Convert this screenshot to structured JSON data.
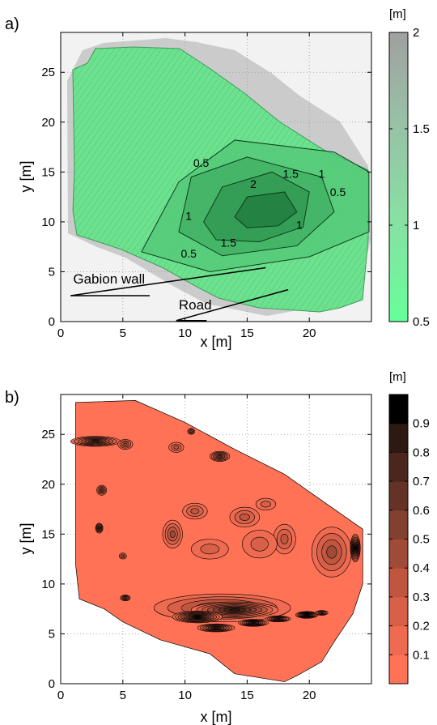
{
  "chart_data": [
    {
      "panel": "a)",
      "type": "heatmap",
      "xlabel": "x [m]",
      "ylabel": "y [m]",
      "xlim": [
        0,
        25
      ],
      "ylim": [
        0,
        29
      ],
      "xticks": [
        0,
        5,
        10,
        15,
        20
      ],
      "yticks": [
        0,
        5,
        10,
        15,
        20,
        25
      ],
      "grid": true,
      "colorbar": {
        "unit": "[m]",
        "range": [
          0.5,
          2
        ],
        "ticks": [
          "0.5",
          "1",
          "1.5",
          "2"
        ],
        "colors": [
          "#66ff99",
          "#a0a0a0"
        ]
      },
      "outline": [
        [
          1,
          29
        ],
        [
          19,
          28.5
        ],
        [
          24.8,
          15.2
        ],
        [
          24.8,
          8.5
        ],
        [
          1.5,
          8.5
        ],
        [
          1,
          12
        ],
        [
          1,
          29
        ]
      ],
      "contours": [
        {
          "level": 0.5,
          "points": [
            [
              6.5,
              7
            ],
            [
              9.5,
              14
            ],
            [
              14,
              18.2
            ],
            [
              22,
              17
            ],
            [
              24.8,
              15
            ],
            [
              24.8,
              9
            ],
            [
              20,
              6.5
            ],
            [
              12,
              5
            ],
            [
              6.5,
              7
            ]
          ]
        },
        {
          "level": 1,
          "points": [
            [
              9.5,
              9
            ],
            [
              10.5,
              14.5
            ],
            [
              15,
              16.5
            ],
            [
              21,
              14.5
            ],
            [
              22,
              11
            ],
            [
              19,
              7.6
            ],
            [
              13,
              6.6
            ],
            [
              9.5,
              9
            ]
          ]
        },
        {
          "level": 1.5,
          "points": [
            [
              11.5,
              10
            ],
            [
              13,
              13.5
            ],
            [
              17,
              15
            ],
            [
              20,
              13
            ],
            [
              19.5,
              9.5
            ],
            [
              16,
              8
            ],
            [
              12.5,
              8.2
            ],
            [
              11.5,
              10
            ]
          ]
        },
        {
          "level": 2,
          "points": [
            [
              14,
              10.5
            ],
            [
              15,
              12.5
            ],
            [
              18,
              13
            ],
            [
              19,
              11
            ],
            [
              17.5,
              9.6
            ],
            [
              15,
              9.4
            ],
            [
              14,
              10.5
            ]
          ]
        }
      ],
      "contour_labels": [
        {
          "text": "0.5",
          "x": 11.3,
          "y": 15.5
        },
        {
          "text": "1.5",
          "x": 18.5,
          "y": 14.4
        },
        {
          "text": "1",
          "x": 21,
          "y": 14.4
        },
        {
          "text": "2",
          "x": 15.5,
          "y": 13.4
        },
        {
          "text": "0.5",
          "x": 22.3,
          "y": 12.6
        },
        {
          "text": "1",
          "x": 10.3,
          "y": 10.2
        },
        {
          "text": "1",
          "x": 19.2,
          "y": 9.3
        },
        {
          "text": "1.5",
          "x": 13.5,
          "y": 7.5
        },
        {
          "text": "0.5",
          "x": 10.3,
          "y": 6.4
        }
      ],
      "annotations": [
        {
          "text": "Gabion wall",
          "x": 1,
          "y": 3.8,
          "line": [
            [
              0.8,
              2.6
            ],
            [
              16.5,
              5.4
            ]
          ]
        },
        {
          "text": "Road",
          "x": 9.5,
          "y": 1.2,
          "line": [
            [
              9.3,
              0.1
            ],
            [
              18.3,
              3.2
            ]
          ]
        }
      ]
    },
    {
      "panel": "b)",
      "type": "heatmap",
      "xlabel": "x [m]",
      "ylabel": "y [m]",
      "xlim": [
        0,
        25
      ],
      "ylim": [
        0,
        29
      ],
      "xticks": [
        0,
        5,
        10,
        15,
        20
      ],
      "yticks": [
        0,
        5,
        10,
        15,
        20,
        25
      ],
      "grid": true,
      "colorbar": {
        "unit": "[m]",
        "range": [
          0,
          1
        ],
        "ticks": [
          "0.1",
          "0.2",
          "0.3",
          "0.4",
          "0.5",
          "0.6",
          "0.7",
          "0.8",
          "0.9"
        ],
        "colors": [
          "#ff7256",
          "#ee6a50",
          "#d86048",
          "#c05540",
          "#a04a38",
          "#82402f",
          "#643226",
          "#4a261c",
          "#2e1812",
          "#000000"
        ]
      },
      "outline": [
        [
          1.2,
          28.2
        ],
        [
          6,
          28.4
        ],
        [
          10,
          26.2
        ],
        [
          14,
          23.5
        ],
        [
          18,
          21
        ],
        [
          22,
          17.5
        ],
        [
          24.3,
          15.5
        ],
        [
          24.3,
          10
        ],
        [
          23.5,
          7
        ],
        [
          22,
          4.2
        ],
        [
          21,
          2.2
        ],
        [
          19,
          0.8
        ],
        [
          18,
          0.2
        ],
        [
          14,
          1
        ],
        [
          12,
          3
        ],
        [
          8,
          4.4
        ],
        [
          5,
          6.2
        ],
        [
          3.5,
          7.5
        ],
        [
          1.5,
          8.5
        ],
        [
          1.2,
          12
        ],
        [
          1.2,
          28.2
        ]
      ],
      "features": [
        {
          "x": 2.8,
          "y": 24.3,
          "rx": 2.0,
          "ry": 0.5,
          "level": 0.7
        },
        {
          "x": 5.2,
          "y": 24.0,
          "rx": 0.6,
          "ry": 0.5,
          "level": 0.4
        },
        {
          "x": 9.3,
          "y": 23.7,
          "rx": 0.6,
          "ry": 0.5,
          "level": 0.3
        },
        {
          "x": 12.8,
          "y": 22.8,
          "rx": 0.8,
          "ry": 0.5,
          "level": 0.6
        },
        {
          "x": 10.5,
          "y": 25.3,
          "rx": 0.3,
          "ry": 0.3,
          "level": 0.4
        },
        {
          "x": 3.3,
          "y": 19.4,
          "rx": 0.4,
          "ry": 0.5,
          "level": 0.5
        },
        {
          "x": 3.1,
          "y": 15.6,
          "rx": 0.3,
          "ry": 0.5,
          "level": 0.6
        },
        {
          "x": 9.0,
          "y": 15.0,
          "rx": 0.8,
          "ry": 1.4,
          "level": 0.4
        },
        {
          "x": 10.8,
          "y": 17.3,
          "rx": 1.0,
          "ry": 0.8,
          "level": 0.3
        },
        {
          "x": 14.8,
          "y": 16.7,
          "rx": 1.2,
          "ry": 1.0,
          "level": 0.3
        },
        {
          "x": 16.5,
          "y": 18.0,
          "rx": 0.8,
          "ry": 0.6,
          "level": 0.2
        },
        {
          "x": 18.0,
          "y": 14.5,
          "rx": 0.9,
          "ry": 1.5,
          "level": 0.3
        },
        {
          "x": 21.8,
          "y": 13.2,
          "rx": 1.6,
          "ry": 2.5,
          "level": 0.4
        },
        {
          "x": 23.7,
          "y": 13.6,
          "rx": 0.4,
          "ry": 1.4,
          "level": 0.9
        },
        {
          "x": 16.0,
          "y": 14.0,
          "rx": 1.4,
          "ry": 1.4,
          "level": 0.2
        },
        {
          "x": 12.0,
          "y": 13.5,
          "rx": 1.5,
          "ry": 1.0,
          "level": 0.2
        },
        {
          "x": 5.0,
          "y": 12.8,
          "rx": 0.3,
          "ry": 0.3,
          "level": 0.3
        },
        {
          "x": 5.2,
          "y": 8.6,
          "rx": 0.4,
          "ry": 0.3,
          "level": 0.5
        },
        {
          "x": 13.0,
          "y": 7.6,
          "rx": 5.5,
          "ry": 1.4,
          "level": 0.5
        },
        {
          "x": 14.0,
          "y": 7.4,
          "rx": 3.5,
          "ry": 0.8,
          "level": 0.8
        },
        {
          "x": 11.0,
          "y": 6.7,
          "rx": 2.0,
          "ry": 0.6,
          "level": 0.9
        },
        {
          "x": 12.5,
          "y": 5.6,
          "rx": 1.5,
          "ry": 0.4,
          "level": 0.7
        },
        {
          "x": 15.5,
          "y": 6.1,
          "rx": 1.2,
          "ry": 0.35,
          "level": 0.8
        },
        {
          "x": 17.5,
          "y": 6.5,
          "rx": 1.0,
          "ry": 0.3,
          "level": 0.7
        },
        {
          "x": 19.8,
          "y": 6.9,
          "rx": 0.9,
          "ry": 0.35,
          "level": 0.9
        },
        {
          "x": 21.0,
          "y": 7.1,
          "rx": 0.5,
          "ry": 0.25,
          "level": 0.5
        }
      ]
    }
  ]
}
